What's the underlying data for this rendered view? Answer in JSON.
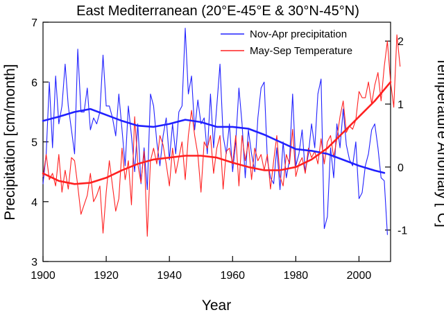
{
  "chart_data": {
    "type": "line",
    "title": "East Mediterranean (20°E-45°E & 30°N-45°N)",
    "xlabel": "Year",
    "ylabel_left": "Precipitation [cm/month]",
    "ylabel_right": "Temperature Anomaly [°C]",
    "xlim": [
      1900,
      2010
    ],
    "ylim_left": [
      3,
      7
    ],
    "ylim_right": [
      -1.5,
      2.3
    ],
    "x_ticks": [
      1900,
      1920,
      1940,
      1960,
      1980,
      2000
    ],
    "y_left_ticks": [
      3,
      4,
      5,
      6,
      7
    ],
    "y_right_ticks": [
      -1,
      0,
      1,
      2
    ],
    "grid": false,
    "legend_position": "top-right",
    "series": [
      {
        "name": "Nov-Apr precipitation",
        "axis": "left",
        "color": "#2020ff",
        "x_start": 1900,
        "values": [
          4.3,
          4.8,
          6.0,
          4.9,
          6.1,
          5.3,
          5.6,
          6.3,
          5.6,
          5.2,
          4.8,
          6.55,
          5.5,
          5.5,
          5.9,
          5.2,
          5.4,
          5.3,
          5.5,
          6.45,
          5.6,
          5.6,
          5.4,
          5.1,
          5.8,
          5.2,
          4.6,
          5.6,
          5.1,
          4.5,
          5.3,
          4.3,
          4.9,
          4.2,
          5.8,
          5.6,
          5.0,
          4.6,
          5.1,
          5.4,
          4.7,
          5.3,
          4.8,
          5.5,
          5.6,
          6.9,
          5.8,
          6.1,
          5.2,
          5.7,
          5.3,
          5.4,
          4.8,
          5.8,
          4.9,
          5.6,
          6.3,
          5.1,
          4.8,
          5.3,
          4.5,
          5.0,
          5.9,
          5.3,
          4.4,
          5.2,
          4.8,
          4.5,
          5.4,
          5.9,
          6.0,
          4.7,
          4.4,
          4.3,
          4.9,
          4.2,
          5.0,
          4.4,
          4.7,
          5.8,
          4.6,
          4.8,
          5.2,
          4.5,
          4.8,
          5.3,
          4.9,
          5.8,
          6.05,
          3.55,
          3.75,
          4.9,
          4.4,
          5.3,
          4.9,
          5.55,
          4.95,
          4.7,
          4.6,
          5.0,
          4.05,
          4.15,
          4.6,
          4.8,
          5.2,
          5.3,
          4.9,
          4.4,
          4.35,
          3.45
        ]
      },
      {
        "name": "May-Sep Temperature",
        "axis": "right",
        "color": "#ff2020",
        "x_start": 1900,
        "values": [
          -0.15,
          0.2,
          -0.2,
          -0.1,
          -0.3,
          0.2,
          -0.4,
          -0.05,
          -0.35,
          0.15,
          0.1,
          -0.3,
          -0.75,
          -0.6,
          -0.45,
          -0.1,
          -0.55,
          -0.45,
          -0.3,
          -1.05,
          -0.4,
          0.1,
          -0.3,
          -0.7,
          -0.5,
          0.3,
          -0.2,
          0.1,
          -0.6,
          0.8,
          0.05,
          -0.25,
          0.25,
          -1.1,
          0.1,
          0.3,
          0.05,
          0.5,
          0.35,
          0.05,
          -0.3,
          0.3,
          -0.1,
          0.15,
          0.4,
          -0.2,
          0.5,
          0.9,
          0.5,
          0.2,
          -0.4,
          0.4,
          0.3,
          0.5,
          -0.1,
          0.3,
          0.5,
          -0.35,
          0.25,
          0.3,
          0.05,
          0.5,
          -0.3,
          0.5,
          0.1,
          0.4,
          -0.2,
          0.3,
          0.1,
          0.2,
          -0.05,
          0.2,
          -0.35,
          0.1,
          0.5,
          -0.15,
          -0.3,
          0.2,
          0.05,
          0.6,
          -0.15,
          0.05,
          0.15,
          -0.1,
          0.3,
          0.15,
          0.25,
          0.05,
          0.45,
          0.05,
          0.4,
          0.5,
          0.15,
          0.45,
          0.8,
          1.05,
          0.55,
          0.65,
          0.6,
          0.75,
          1.2,
          1.1,
          1.1,
          1.35,
          1.0,
          1.3,
          1.5,
          1.05,
          1.6,
          2.0,
          1.35,
          0.95,
          2.1,
          1.6
        ]
      },
      {
        "name": "",
        "axis": "left",
        "color": "#2020ff",
        "smooth": true,
        "x": [
          1900,
          1905,
          1910,
          1915,
          1920,
          1925,
          1930,
          1935,
          1940,
          1945,
          1950,
          1955,
          1960,
          1965,
          1970,
          1975,
          1980,
          1985,
          1990,
          1995,
          2000,
          2005,
          2008
        ],
        "values": [
          5.35,
          5.42,
          5.5,
          5.55,
          5.45,
          5.35,
          5.27,
          5.25,
          5.3,
          5.37,
          5.33,
          5.25,
          5.25,
          5.22,
          5.12,
          5.0,
          4.88,
          4.85,
          4.8,
          4.7,
          4.6,
          4.52,
          4.48
        ]
      },
      {
        "name": "",
        "axis": "right",
        "color": "#ff2020",
        "smooth": true,
        "x": [
          1900,
          1905,
          1910,
          1915,
          1920,
          1925,
          1930,
          1935,
          1940,
          1945,
          1950,
          1955,
          1960,
          1965,
          1970,
          1975,
          1980,
          1985,
          1990,
          1995,
          2000,
          2005,
          2010
        ],
        "values": [
          -0.1,
          -0.22,
          -0.27,
          -0.25,
          -0.17,
          -0.05,
          0.05,
          0.12,
          0.15,
          0.18,
          0.18,
          0.15,
          0.07,
          0.0,
          -0.05,
          -0.05,
          0.0,
          0.12,
          0.3,
          0.55,
          0.8,
          1.05,
          1.35
        ]
      }
    ]
  }
}
